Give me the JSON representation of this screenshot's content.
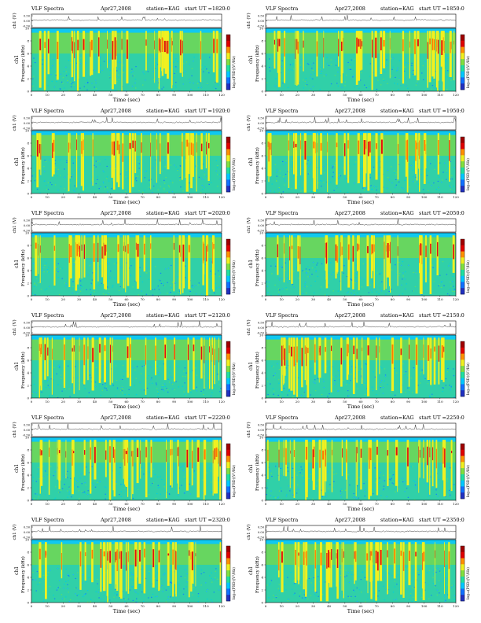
{
  "colors": {
    "background": "#ffffff",
    "axis": "#000000",
    "trace": "#222222",
    "colorbar": [
      "#2030c0",
      "#1070ff",
      "#00c8ff",
      "#20e0a0",
      "#80e040",
      "#f0f020",
      "#ff9000",
      "#e00000",
      "#a00000"
    ]
  },
  "common": {
    "instrument_label": "VLF Spectra",
    "date": "Apr27,2008",
    "station": "station=KAG",
    "start_label": "start UT =",
    "trace_ylabel": "ch1 (V)",
    "spec_ylabel_1": "ch1",
    "spec_ylabel_2": "Frequency (kHz)",
    "xlabel": "Time (sec)",
    "colorbar_label": "log₁₀(PSD)(V²/Hz)"
  },
  "chart_data": [
    {
      "type": "heatmap",
      "start_ut": "1820:0",
      "xlim": [
        0,
        120
      ],
      "ylim": [
        0,
        10
      ],
      "trace_ylim": [
        -0.5,
        0.5
      ],
      "x_ticks": [
        0,
        10,
        20,
        30,
        40,
        50,
        60,
        70,
        80,
        90,
        100,
        110,
        120
      ],
      "y_ticks": [
        0,
        2,
        4,
        6,
        8,
        10
      ],
      "trace_ticks": [
        "0.50",
        "0.00",
        "-0.50"
      ]
    },
    {
      "type": "heatmap",
      "start_ut": "1850:0",
      "xlim": [
        0,
        120
      ],
      "ylim": [
        0,
        10
      ],
      "trace_ylim": [
        -0.5,
        0.5
      ],
      "x_ticks": [
        0,
        10,
        20,
        30,
        40,
        50,
        60,
        70,
        80,
        90,
        100,
        110,
        120
      ],
      "y_ticks": [
        0,
        2,
        4,
        6,
        8,
        10
      ],
      "trace_ticks": [
        "0.50",
        "0.00",
        "-0.50"
      ]
    },
    {
      "type": "heatmap",
      "start_ut": "1920:0",
      "xlim": [
        0,
        120
      ],
      "ylim": [
        0,
        10
      ],
      "trace_ylim": [
        -0.5,
        0.5
      ],
      "x_ticks": [
        0,
        10,
        20,
        30,
        40,
        50,
        60,
        70,
        80,
        90,
        100,
        110,
        120
      ],
      "y_ticks": [
        0,
        2,
        4,
        6,
        8,
        10
      ],
      "trace_ticks": [
        "0.50",
        "0.00",
        "-0.50"
      ]
    },
    {
      "type": "heatmap",
      "start_ut": "1950:0",
      "xlim": [
        0,
        120
      ],
      "ylim": [
        0,
        10
      ],
      "trace_ylim": [
        -0.5,
        0.5
      ],
      "x_ticks": [
        0,
        10,
        20,
        30,
        40,
        50,
        60,
        70,
        80,
        90,
        100,
        110,
        120
      ],
      "y_ticks": [
        0,
        2,
        4,
        6,
        8,
        10
      ],
      "trace_ticks": [
        "0.50",
        "0.00",
        "-0.50"
      ]
    },
    {
      "type": "heatmap",
      "start_ut": "2020:0",
      "xlim": [
        0,
        120
      ],
      "ylim": [
        0,
        10
      ],
      "trace_ylim": [
        -0.5,
        0.5
      ],
      "x_ticks": [
        0,
        10,
        20,
        30,
        40,
        50,
        60,
        70,
        80,
        90,
        100,
        110,
        120
      ],
      "y_ticks": [
        0,
        2,
        4,
        6,
        8,
        10
      ],
      "trace_ticks": [
        "0.50",
        "0.00",
        "-0.50"
      ]
    },
    {
      "type": "heatmap",
      "start_ut": "2050:0",
      "xlim": [
        0,
        120
      ],
      "ylim": [
        0,
        10
      ],
      "trace_ylim": [
        -0.5,
        0.5
      ],
      "x_ticks": [
        0,
        10,
        20,
        30,
        40,
        50,
        60,
        70,
        80,
        90,
        100,
        110,
        120
      ],
      "y_ticks": [
        0,
        2,
        4,
        6,
        8,
        10
      ],
      "trace_ticks": [
        "0.50",
        "0.00",
        "-0.50"
      ]
    },
    {
      "type": "heatmap",
      "start_ut": "2120:0",
      "xlim": [
        0,
        120
      ],
      "ylim": [
        0,
        10
      ],
      "trace_ylim": [
        -0.5,
        0.5
      ],
      "x_ticks": [
        0,
        10,
        20,
        30,
        40,
        50,
        60,
        70,
        80,
        90,
        100,
        110,
        120
      ],
      "y_ticks": [
        0,
        2,
        4,
        6,
        8,
        10
      ],
      "trace_ticks": [
        "0.50",
        "0.00",
        "-0.50"
      ]
    },
    {
      "type": "heatmap",
      "start_ut": "2150:0",
      "xlim": [
        0,
        120
      ],
      "ylim": [
        0,
        10
      ],
      "trace_ylim": [
        -0.5,
        0.5
      ],
      "x_ticks": [
        0,
        10,
        20,
        30,
        40,
        50,
        60,
        70,
        80,
        90,
        100,
        110,
        120
      ],
      "y_ticks": [
        0,
        2,
        4,
        6,
        8,
        10
      ],
      "trace_ticks": [
        "0.50",
        "0.00",
        "-0.50"
      ]
    },
    {
      "type": "heatmap",
      "start_ut": "2220:0",
      "xlim": [
        0,
        120
      ],
      "ylim": [
        0,
        10
      ],
      "trace_ylim": [
        -0.5,
        0.5
      ],
      "x_ticks": [
        0,
        10,
        20,
        30,
        40,
        50,
        60,
        70,
        80,
        90,
        100,
        110,
        120
      ],
      "y_ticks": [
        0,
        2,
        4,
        6,
        8,
        10
      ],
      "trace_ticks": [
        "0.50",
        "0.00",
        "-0.50"
      ]
    },
    {
      "type": "heatmap",
      "start_ut": "2250:0",
      "xlim": [
        0,
        120
      ],
      "ylim": [
        0,
        10
      ],
      "trace_ylim": [
        -0.5,
        0.5
      ],
      "x_ticks": [
        0,
        10,
        20,
        30,
        40,
        50,
        60,
        70,
        80,
        90,
        100,
        110,
        120
      ],
      "y_ticks": [
        0,
        2,
        4,
        6,
        8,
        10
      ],
      "trace_ticks": [
        "0.50",
        "0.00",
        "-0.50"
      ]
    },
    {
      "type": "heatmap",
      "start_ut": "2320:0",
      "xlim": [
        0,
        120
      ],
      "ylim": [
        0,
        10
      ],
      "trace_ylim": [
        -0.5,
        0.5
      ],
      "x_ticks": [
        0,
        10,
        20,
        30,
        40,
        50,
        60,
        70,
        80,
        90,
        100,
        110,
        120
      ],
      "y_ticks": [
        0,
        2,
        4,
        6,
        8,
        10
      ],
      "trace_ticks": [
        "0.50",
        "0.00",
        "-0.50"
      ]
    },
    {
      "type": "heatmap",
      "start_ut": "2350:0",
      "xlim": [
        0,
        120
      ],
      "ylim": [
        0,
        10
      ],
      "trace_ylim": [
        -0.5,
        0.5
      ],
      "x_ticks": [
        0,
        10,
        20,
        30,
        40,
        50,
        60,
        70,
        80,
        90,
        100,
        110,
        120
      ],
      "y_ticks": [
        0,
        2,
        4,
        6,
        8,
        10
      ],
      "trace_ticks": [
        "0.50",
        "0.00",
        "-0.50"
      ]
    }
  ]
}
